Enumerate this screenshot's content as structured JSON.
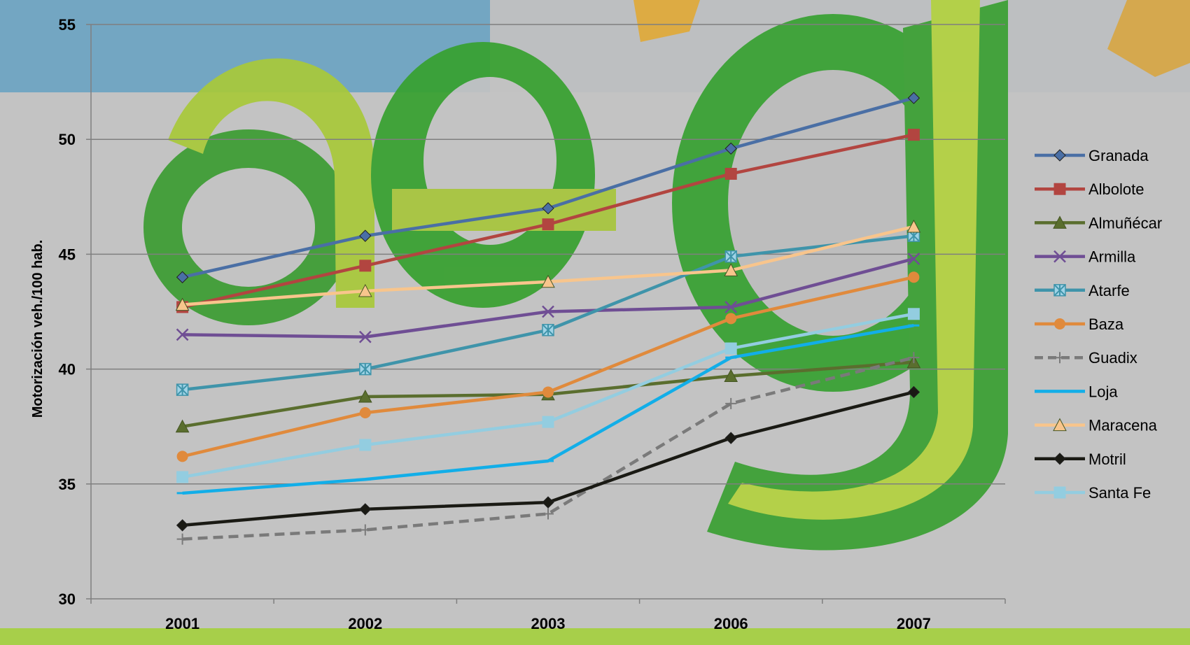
{
  "chart_data": {
    "type": "line",
    "title": "",
    "xlabel": "",
    "ylabel": "Motorización veh./100 hab.",
    "categories": [
      "2001",
      "2002",
      "2003",
      "2006",
      "2007"
    ],
    "ylim": [
      30,
      55
    ],
    "yticks": [
      30,
      35,
      40,
      45,
      50,
      55
    ],
    "grid": true,
    "legend_position": "right",
    "series": [
      {
        "name": "Granada",
        "color": "#4a6fa5",
        "marker": "diamond",
        "dash": false,
        "values": [
          44.0,
          45.8,
          47.0,
          49.6,
          51.8
        ]
      },
      {
        "name": "Albolote",
        "color": "#b24540",
        "marker": "square",
        "dash": false,
        "values": [
          42.7,
          44.5,
          46.3,
          48.5,
          50.2
        ]
      },
      {
        "name": "Almuñécar",
        "color": "#5a6e2e",
        "marker": "triangle",
        "dash": false,
        "values": [
          37.5,
          38.8,
          38.9,
          39.7,
          40.3
        ]
      },
      {
        "name": "Armilla",
        "color": "#6f4e94",
        "marker": "x",
        "dash": false,
        "values": [
          41.5,
          41.4,
          42.5,
          42.7,
          44.8
        ]
      },
      {
        "name": "Atarfe",
        "color": "#3f94aa",
        "marker": "asterisk",
        "dash": false,
        "values": [
          39.1,
          40.0,
          41.7,
          44.9,
          45.8
        ]
      },
      {
        "name": "Baza",
        "color": "#e08a3c",
        "marker": "circle",
        "dash": false,
        "values": [
          36.2,
          38.1,
          39.0,
          42.2,
          44.0
        ]
      },
      {
        "name": "Guadix",
        "color": "#7a7a7a",
        "marker": "plus",
        "dash": true,
        "values": [
          32.6,
          33.0,
          33.7,
          38.5,
          40.5
        ]
      },
      {
        "name": "Loja",
        "color": "#12aee8",
        "marker": "dash",
        "dash": false,
        "values": [
          34.6,
          35.2,
          36.0,
          40.5,
          41.9
        ]
      },
      {
        "name": "Maracena",
        "color": "#f8c58c",
        "marker": "triangle",
        "dash": false,
        "values": [
          42.8,
          43.4,
          43.8,
          44.3,
          46.2
        ]
      },
      {
        "name": "Motril",
        "color": "#1a1a14",
        "marker": "diamond",
        "dash": false,
        "values": [
          33.2,
          33.9,
          34.2,
          37.0,
          39.0
        ]
      },
      {
        "name": "Santa Fe",
        "color": "#93cde0",
        "marker": "square",
        "dash": false,
        "values": [
          35.3,
          36.7,
          37.7,
          40.9,
          42.4
        ]
      }
    ]
  }
}
